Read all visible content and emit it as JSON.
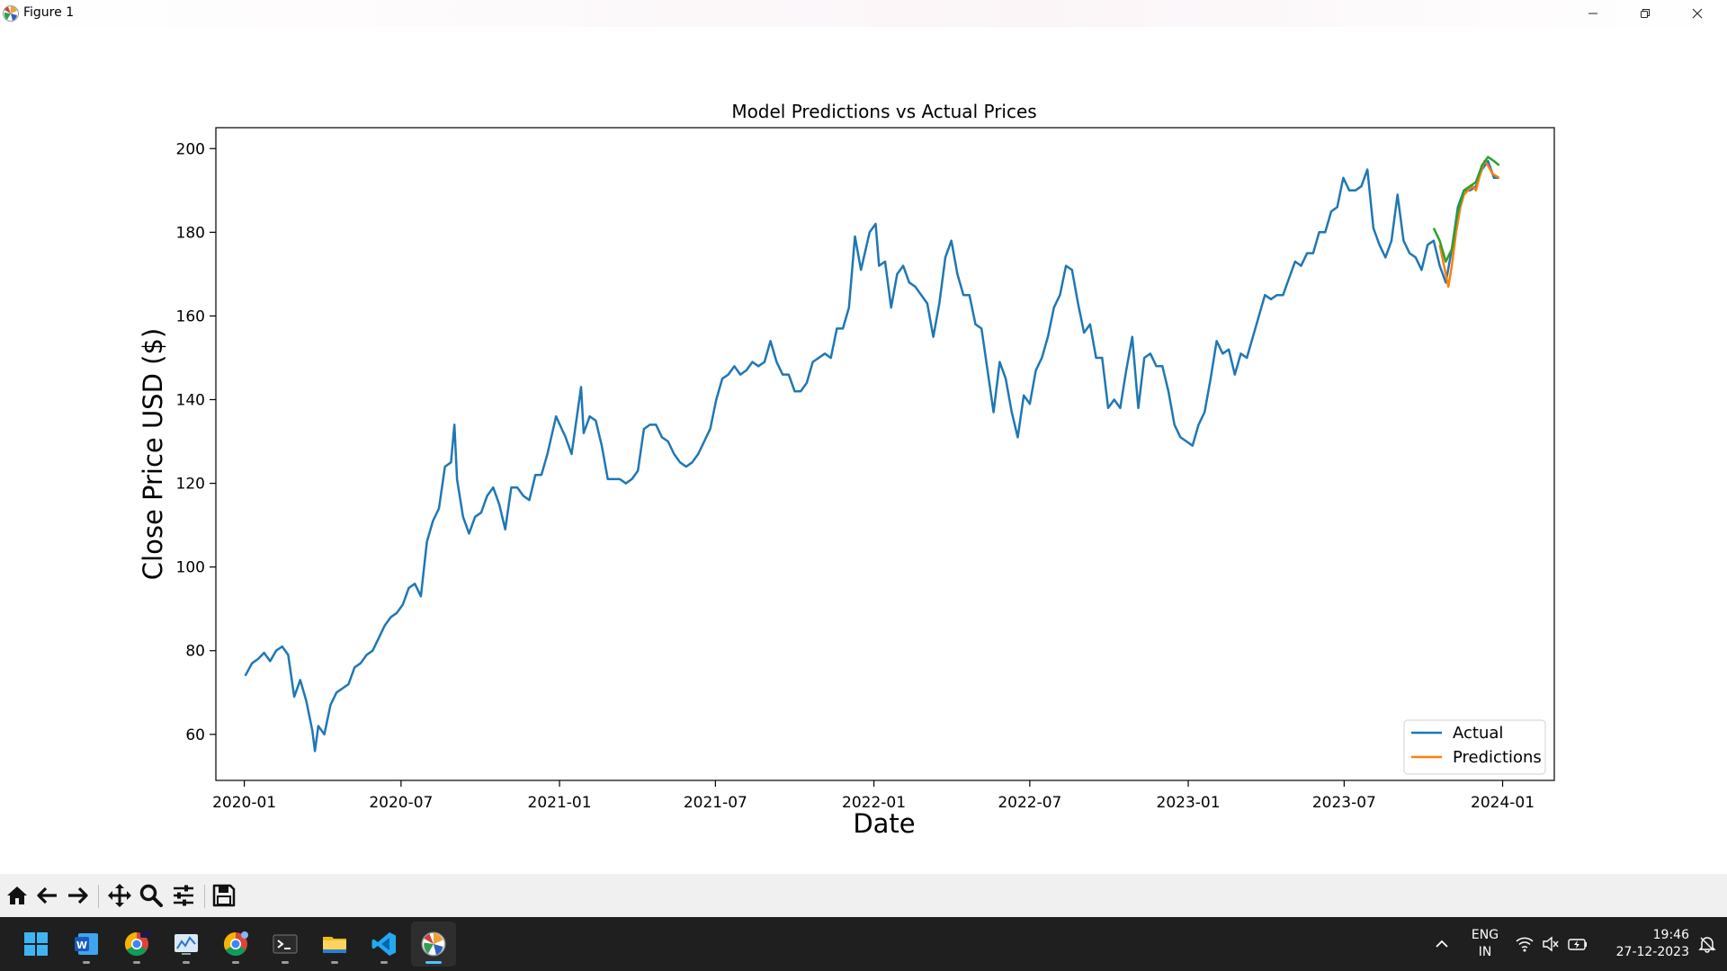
{
  "window": {
    "title": "Figure 1"
  },
  "chart_data": {
    "type": "line",
    "title": "Model Predictions vs Actual Prices",
    "xlabel": "Date",
    "ylabel": "Close Price USD ($)",
    "xlim": [
      "2019-11-29",
      "2024-03-01"
    ],
    "ylim": [
      49,
      205
    ],
    "x_ticks": [
      "2020-01",
      "2020-07",
      "2021-01",
      "2021-07",
      "2022-01",
      "2022-07",
      "2023-01",
      "2023-07",
      "2024-01"
    ],
    "y_ticks": [
      60,
      80,
      100,
      120,
      140,
      160,
      180,
      200
    ],
    "grid": false,
    "legend": {
      "placement": "bottom-right",
      "entries": [
        "Actual",
        "Predictions"
      ]
    },
    "series": [
      {
        "name": "Actual",
        "color": "#1f77b4",
        "points": [
          [
            "2020-01-02",
            74
          ],
          [
            "2020-01-10",
            77
          ],
          [
            "2020-01-17",
            78
          ],
          [
            "2020-01-24",
            79.5
          ],
          [
            "2020-01-31",
            77.5
          ],
          [
            "2020-02-07",
            80
          ],
          [
            "2020-02-14",
            81
          ],
          [
            "2020-02-21",
            79
          ],
          [
            "2020-02-28",
            69
          ],
          [
            "2020-03-06",
            73
          ],
          [
            "2020-03-13",
            68
          ],
          [
            "2020-03-20",
            61
          ],
          [
            "2020-03-23",
            56
          ],
          [
            "2020-03-27",
            62
          ],
          [
            "2020-04-03",
            60
          ],
          [
            "2020-04-10",
            67
          ],
          [
            "2020-04-17",
            70
          ],
          [
            "2020-04-24",
            71
          ],
          [
            "2020-05-01",
            72
          ],
          [
            "2020-05-08",
            76
          ],
          [
            "2020-05-15",
            77
          ],
          [
            "2020-05-22",
            79
          ],
          [
            "2020-05-29",
            80
          ],
          [
            "2020-06-05",
            83
          ],
          [
            "2020-06-12",
            86
          ],
          [
            "2020-06-19",
            88
          ],
          [
            "2020-06-26",
            89
          ],
          [
            "2020-07-03",
            91
          ],
          [
            "2020-07-10",
            95
          ],
          [
            "2020-07-17",
            96
          ],
          [
            "2020-07-24",
            93
          ],
          [
            "2020-07-31",
            106
          ],
          [
            "2020-08-07",
            111
          ],
          [
            "2020-08-14",
            114
          ],
          [
            "2020-08-21",
            124
          ],
          [
            "2020-08-28",
            125
          ],
          [
            "2020-09-01",
            134
          ],
          [
            "2020-09-04",
            121
          ],
          [
            "2020-09-11",
            112
          ],
          [
            "2020-09-18",
            108
          ],
          [
            "2020-09-25",
            112
          ],
          [
            "2020-10-02",
            113
          ],
          [
            "2020-10-09",
            117
          ],
          [
            "2020-10-16",
            119
          ],
          [
            "2020-10-23",
            115
          ],
          [
            "2020-10-30",
            109
          ],
          [
            "2020-11-06",
            119
          ],
          [
            "2020-11-13",
            119
          ],
          [
            "2020-11-20",
            117
          ],
          [
            "2020-11-27",
            116
          ],
          [
            "2020-12-04",
            122
          ],
          [
            "2020-12-11",
            122
          ],
          [
            "2020-12-18",
            127
          ],
          [
            "2020-12-28",
            136
          ],
          [
            "2021-01-08",
            131
          ],
          [
            "2021-01-15",
            127
          ],
          [
            "2021-01-26",
            143
          ],
          [
            "2021-01-29",
            132
          ],
          [
            "2021-02-05",
            136
          ],
          [
            "2021-02-12",
            135
          ],
          [
            "2021-02-19",
            129
          ],
          [
            "2021-02-26",
            121
          ],
          [
            "2021-03-05",
            121
          ],
          [
            "2021-03-12",
            121
          ],
          [
            "2021-03-19",
            120
          ],
          [
            "2021-03-26",
            121
          ],
          [
            "2021-04-02",
            123
          ],
          [
            "2021-04-09",
            133
          ],
          [
            "2021-04-16",
            134
          ],
          [
            "2021-04-23",
            134
          ],
          [
            "2021-04-30",
            131
          ],
          [
            "2021-05-07",
            130
          ],
          [
            "2021-05-14",
            127
          ],
          [
            "2021-05-21",
            125
          ],
          [
            "2021-05-28",
            124
          ],
          [
            "2021-06-04",
            125
          ],
          [
            "2021-06-11",
            127
          ],
          [
            "2021-06-18",
            130
          ],
          [
            "2021-06-25",
            133
          ],
          [
            "2021-07-02",
            140
          ],
          [
            "2021-07-09",
            145
          ],
          [
            "2021-07-16",
            146
          ],
          [
            "2021-07-23",
            148
          ],
          [
            "2021-07-30",
            146
          ],
          [
            "2021-08-06",
            147
          ],
          [
            "2021-08-13",
            149
          ],
          [
            "2021-08-20",
            148
          ],
          [
            "2021-08-27",
            149
          ],
          [
            "2021-09-03",
            154
          ],
          [
            "2021-09-10",
            149
          ],
          [
            "2021-09-17",
            146
          ],
          [
            "2021-09-24",
            146
          ],
          [
            "2021-10-01",
            142
          ],
          [
            "2021-10-08",
            142
          ],
          [
            "2021-10-15",
            144
          ],
          [
            "2021-10-22",
            149
          ],
          [
            "2021-10-29",
            150
          ],
          [
            "2021-11-05",
            151
          ],
          [
            "2021-11-12",
            150
          ],
          [
            "2021-11-19",
            157
          ],
          [
            "2021-11-26",
            157
          ],
          [
            "2021-12-03",
            162
          ],
          [
            "2021-12-10",
            179
          ],
          [
            "2021-12-17",
            171
          ],
          [
            "2021-12-27",
            180
          ],
          [
            "2022-01-03",
            182
          ],
          [
            "2022-01-07",
            172
          ],
          [
            "2022-01-14",
            173
          ],
          [
            "2022-01-21",
            162
          ],
          [
            "2022-01-28",
            170
          ],
          [
            "2022-02-04",
            172
          ],
          [
            "2022-02-11",
            168
          ],
          [
            "2022-02-18",
            167
          ],
          [
            "2022-02-25",
            165
          ],
          [
            "2022-03-04",
            163
          ],
          [
            "2022-03-11",
            155
          ],
          [
            "2022-03-18",
            163
          ],
          [
            "2022-03-25",
            174
          ],
          [
            "2022-04-01",
            178
          ],
          [
            "2022-04-08",
            170
          ],
          [
            "2022-04-15",
            165
          ],
          [
            "2022-04-22",
            165
          ],
          [
            "2022-04-29",
            158
          ],
          [
            "2022-05-06",
            157
          ],
          [
            "2022-05-13",
            147
          ],
          [
            "2022-05-20",
            137
          ],
          [
            "2022-05-27",
            149
          ],
          [
            "2022-06-03",
            145
          ],
          [
            "2022-06-10",
            137
          ],
          [
            "2022-06-17",
            131
          ],
          [
            "2022-06-24",
            141
          ],
          [
            "2022-07-01",
            139
          ],
          [
            "2022-07-08",
            147
          ],
          [
            "2022-07-15",
            150
          ],
          [
            "2022-07-22",
            155
          ],
          [
            "2022-07-29",
            162
          ],
          [
            "2022-08-05",
            165
          ],
          [
            "2022-08-12",
            172
          ],
          [
            "2022-08-19",
            171
          ],
          [
            "2022-08-26",
            163
          ],
          [
            "2022-09-02",
            156
          ],
          [
            "2022-09-09",
            158
          ],
          [
            "2022-09-16",
            150
          ],
          [
            "2022-09-23",
            150
          ],
          [
            "2022-09-30",
            138
          ],
          [
            "2022-10-07",
            140
          ],
          [
            "2022-10-14",
            138
          ],
          [
            "2022-10-21",
            147
          ],
          [
            "2022-10-28",
            155
          ],
          [
            "2022-11-04",
            138
          ],
          [
            "2022-11-11",
            150
          ],
          [
            "2022-11-18",
            151
          ],
          [
            "2022-11-25",
            148
          ],
          [
            "2022-12-02",
            148
          ],
          [
            "2022-12-09",
            142
          ],
          [
            "2022-12-16",
            134
          ],
          [
            "2022-12-23",
            131
          ],
          [
            "2022-12-30",
            130
          ],
          [
            "2023-01-06",
            129
          ],
          [
            "2023-01-13",
            134
          ],
          [
            "2023-01-20",
            137
          ],
          [
            "2023-01-27",
            145
          ],
          [
            "2023-02-03",
            154
          ],
          [
            "2023-02-10",
            151
          ],
          [
            "2023-02-17",
            152
          ],
          [
            "2023-02-24",
            146
          ],
          [
            "2023-03-03",
            151
          ],
          [
            "2023-03-10",
            150
          ],
          [
            "2023-03-17",
            155
          ],
          [
            "2023-03-24",
            160
          ],
          [
            "2023-03-31",
            165
          ],
          [
            "2023-04-07",
            164
          ],
          [
            "2023-04-14",
            165
          ],
          [
            "2023-04-21",
            165
          ],
          [
            "2023-04-28",
            169
          ],
          [
            "2023-05-05",
            173
          ],
          [
            "2023-05-12",
            172
          ],
          [
            "2023-05-19",
            175
          ],
          [
            "2023-05-26",
            175
          ],
          [
            "2023-06-02",
            180
          ],
          [
            "2023-06-09",
            180
          ],
          [
            "2023-06-16",
            185
          ],
          [
            "2023-06-23",
            186
          ],
          [
            "2023-06-30",
            193
          ],
          [
            "2023-07-07",
            190
          ],
          [
            "2023-07-14",
            190
          ],
          [
            "2023-07-21",
            191
          ],
          [
            "2023-07-28",
            195
          ],
          [
            "2023-08-04",
            181
          ],
          [
            "2023-08-11",
            177
          ],
          [
            "2023-08-18",
            174
          ],
          [
            "2023-08-25",
            178
          ],
          [
            "2023-09-01",
            189
          ],
          [
            "2023-09-08",
            178
          ],
          [
            "2023-09-15",
            175
          ],
          [
            "2023-09-22",
            174
          ],
          [
            "2023-09-29",
            171
          ],
          [
            "2023-10-06",
            177
          ],
          [
            "2023-10-13",
            178
          ],
          [
            "2023-10-20",
            172
          ],
          [
            "2023-10-27",
            168
          ],
          [
            "2023-11-03",
            176
          ],
          [
            "2023-11-10",
            186
          ],
          [
            "2023-11-17",
            190
          ],
          [
            "2023-11-24",
            190
          ],
          [
            "2023-12-01",
            191
          ],
          [
            "2023-12-08",
            195
          ],
          [
            "2023-12-15",
            197
          ],
          [
            "2023-12-22",
            193
          ],
          [
            "2023-12-28",
            193
          ]
        ]
      },
      {
        "name": "Predictions",
        "color": "#ff7f0e",
        "points": [
          [
            "2023-10-20",
            177
          ],
          [
            "2023-10-25",
            172
          ],
          [
            "2023-10-30",
            167
          ],
          [
            "2023-11-03",
            172
          ],
          [
            "2023-11-08",
            180
          ],
          [
            "2023-11-13",
            186
          ],
          [
            "2023-11-17",
            189
          ],
          [
            "2023-11-22",
            190
          ],
          [
            "2023-11-27",
            191
          ],
          [
            "2023-12-01",
            190
          ],
          [
            "2023-12-06",
            194
          ],
          [
            "2023-12-11",
            197
          ],
          [
            "2023-12-15",
            196
          ],
          [
            "2023-12-20",
            194
          ],
          [
            "2023-12-28",
            193
          ]
        ]
      },
      {
        "name": "",
        "color": "#2ca02c",
        "points": [
          [
            "2023-10-13",
            181
          ],
          [
            "2023-10-20",
            178
          ],
          [
            "2023-10-27",
            173
          ],
          [
            "2023-11-03",
            176
          ],
          [
            "2023-11-10",
            185
          ],
          [
            "2023-11-17",
            190
          ],
          [
            "2023-11-24",
            191
          ],
          [
            "2023-12-01",
            192
          ],
          [
            "2023-12-08",
            196
          ],
          [
            "2023-12-15",
            198
          ],
          [
            "2023-12-22",
            197
          ],
          [
            "2023-12-28",
            196
          ]
        ]
      }
    ]
  },
  "toolbar": {
    "buttons": [
      {
        "icon": "home-icon"
      },
      {
        "icon": "back-arrow-icon"
      },
      {
        "icon": "forward-arrow-icon"
      },
      {
        "icon": "pan-icon"
      },
      {
        "icon": "zoom-icon"
      },
      {
        "icon": "configure-subplots-icon"
      },
      {
        "icon": "save-icon"
      }
    ]
  },
  "taskbar": {
    "language": "ENG",
    "region": "IN",
    "time": "19:46",
    "date": "27-12-2023"
  }
}
